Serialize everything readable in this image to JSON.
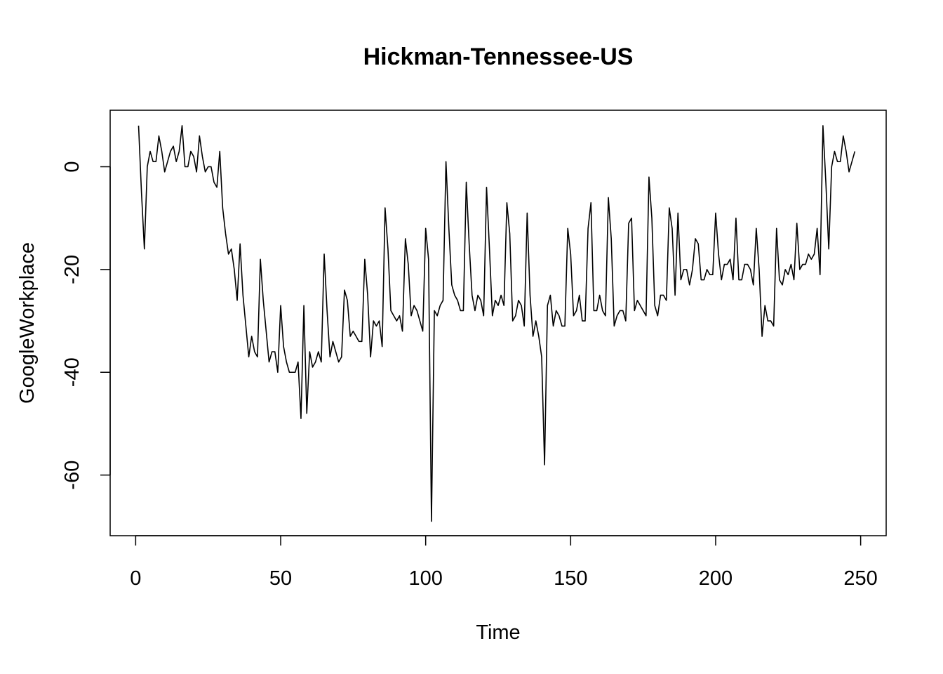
{
  "chart_data": {
    "type": "line",
    "title": "Hickman-Tennessee-US",
    "xlabel": "Time",
    "ylabel": "GoogleWorkplace",
    "xlim": [
      -8.8,
      258.8
    ],
    "ylim": [
      -71.8,
      11.0
    ],
    "x_ticks": [
      0,
      50,
      100,
      150,
      200,
      250
    ],
    "y_ticks": [
      0,
      -20,
      -40,
      -60
    ],
    "x_tick_labels": [
      "0",
      "50",
      "100",
      "150",
      "200",
      "250"
    ],
    "y_tick_labels": [
      "0",
      "-20",
      "-40",
      "-60"
    ],
    "grid": false,
    "legend": "none",
    "series": [
      {
        "x_start": 1,
        "values": [
          8,
          -5,
          -16,
          0,
          3,
          1,
          1,
          6,
          3,
          -1,
          1,
          3,
          4,
          1,
          3,
          8,
          0,
          0,
          3,
          2,
          -1,
          6,
          2,
          -1,
          0,
          0,
          -3,
          -4,
          3,
          -8,
          -13,
          -17,
          -16,
          -20,
          -26,
          -15,
          -25,
          -31,
          -37,
          -33,
          -36,
          -37,
          -18,
          -26,
          -32,
          -38,
          -36,
          -36,
          -40,
          -27,
          -35,
          -38,
          -40,
          -40,
          -40,
          -38,
          -49,
          -27,
          -48,
          -36,
          -39,
          -38,
          -36,
          -38,
          -17,
          -28,
          -37,
          -34,
          -36,
          -38,
          -37,
          -24,
          -26,
          -33,
          -32,
          -33,
          -34,
          -34,
          -18,
          -25,
          -37,
          -30,
          -31,
          -30,
          -35,
          -8,
          -16,
          -28,
          -29,
          -30,
          -29,
          -32,
          -14,
          -19,
          -29,
          -27,
          -28,
          -30,
          -32,
          -12,
          -18,
          -69,
          -28,
          -29,
          -27,
          -26,
          1,
          -12,
          -23,
          -25,
          -26,
          -28,
          -28,
          -3,
          -15,
          -25,
          -28,
          -25,
          -26,
          -29,
          -4,
          -16,
          -29,
          -26,
          -27,
          -25,
          -27,
          -7,
          -13,
          -30,
          -29,
          -26,
          -27,
          -31,
          -9,
          -25,
          -33,
          -30,
          -33,
          -37,
          -58,
          -27,
          -25,
          -31,
          -28,
          -29,
          -31,
          -31,
          -12,
          -17,
          -29,
          -28,
          -25,
          -30,
          -30,
          -12,
          -7,
          -28,
          -28,
          -25,
          -28,
          -29,
          -6,
          -14,
          -31,
          -29,
          -28,
          -28,
          -30,
          -11,
          -10,
          -28,
          -26,
          -27,
          -28,
          -29,
          -2,
          -10,
          -27,
          -29,
          -25,
          -25,
          -26,
          -8,
          -12,
          -25,
          -9,
          -22,
          -20,
          -20,
          -23,
          -20,
          -14,
          -15,
          -22,
          -22,
          -20,
          -21,
          -21,
          -9,
          -17,
          -22,
          -19,
          -19,
          -18,
          -22,
          -10,
          -22,
          -22,
          -19,
          -19,
          -20,
          -23,
          -12,
          -20,
          -33,
          -27,
          -30,
          -30,
          -31,
          -12,
          -22,
          -23,
          -20,
          -21,
          -19,
          -22,
          -11,
          -20,
          -19,
          -19,
          -17,
          -18,
          -17,
          -12,
          -21,
          8,
          -3,
          -16,
          0,
          3,
          1,
          1,
          6,
          3,
          -1,
          1,
          3
        ]
      }
    ]
  }
}
